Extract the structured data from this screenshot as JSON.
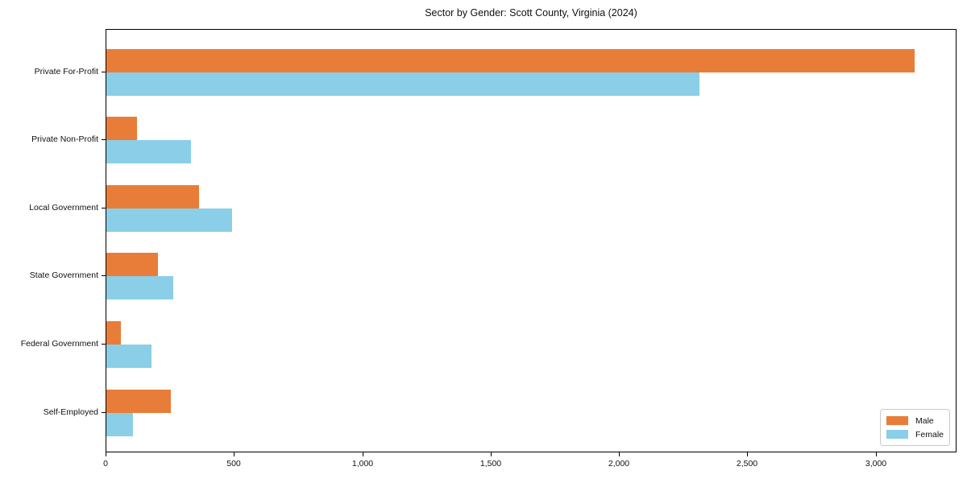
{
  "chart_data": {
    "type": "bar",
    "orientation": "horizontal",
    "title": "Sector by Gender: Scott County, Virginia (2024)",
    "xlabel": "",
    "ylabel": "",
    "categories": [
      "Private For-Profit",
      "Private Non-Profit",
      "Local Government",
      "State Government",
      "Federal Government",
      "Self-Employed"
    ],
    "series": [
      {
        "name": "Male",
        "color": "#e87d3a",
        "values": [
          3150,
          120,
          360,
          200,
          55,
          250
        ]
      },
      {
        "name": "Female",
        "color": "#8bcee8",
        "values": [
          2310,
          330,
          490,
          260,
          175,
          105
        ]
      }
    ],
    "xlim": [
      0,
      3315
    ],
    "xticks": [
      0,
      500,
      1000,
      1500,
      2000,
      2500,
      3000
    ],
    "xtick_labels": [
      "0",
      "500",
      "1,000",
      "1,500",
      "2,000",
      "2,500",
      "3,000"
    ],
    "grid": false,
    "legend_position": "lower right"
  },
  "legend": {
    "items": [
      {
        "label": "Male"
      },
      {
        "label": "Female"
      }
    ]
  }
}
